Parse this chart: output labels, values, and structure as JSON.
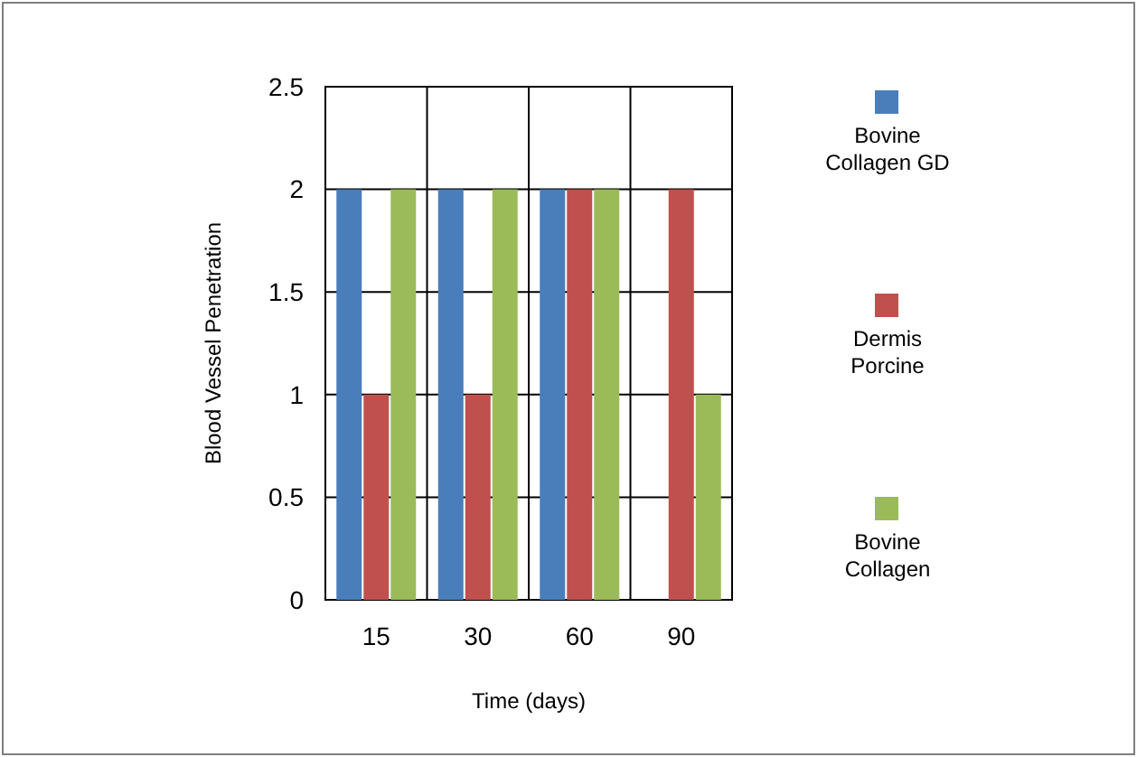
{
  "chart_data": {
    "type": "bar",
    "xlabel": "Time (days)",
    "ylabel": "Blood Vessel Penetration",
    "categories": [
      "15",
      "30",
      "60",
      "90"
    ],
    "series": [
      {
        "name": "Bovine Collagen GD",
        "color": "#4a7ebb",
        "values": [
          2,
          2,
          2,
          0
        ]
      },
      {
        "name": "Dermis Porcine",
        "color": "#c0504d",
        "values": [
          1,
          1,
          2,
          2
        ]
      },
      {
        "name": "Bovine Collagen",
        "color": "#9bbb59",
        "values": [
          2,
          2,
          2,
          1
        ]
      }
    ],
    "ylim": [
      0,
      2.5
    ],
    "yticks": [
      0,
      {
        "value": 0.5,
        "label": "0.5"
      },
      1,
      {
        "value": 1.5,
        "label": "1.5"
      },
      2,
      {
        "value": 2.5,
        "label": "2.5"
      }
    ],
    "grid": true,
    "legend": "right"
  }
}
